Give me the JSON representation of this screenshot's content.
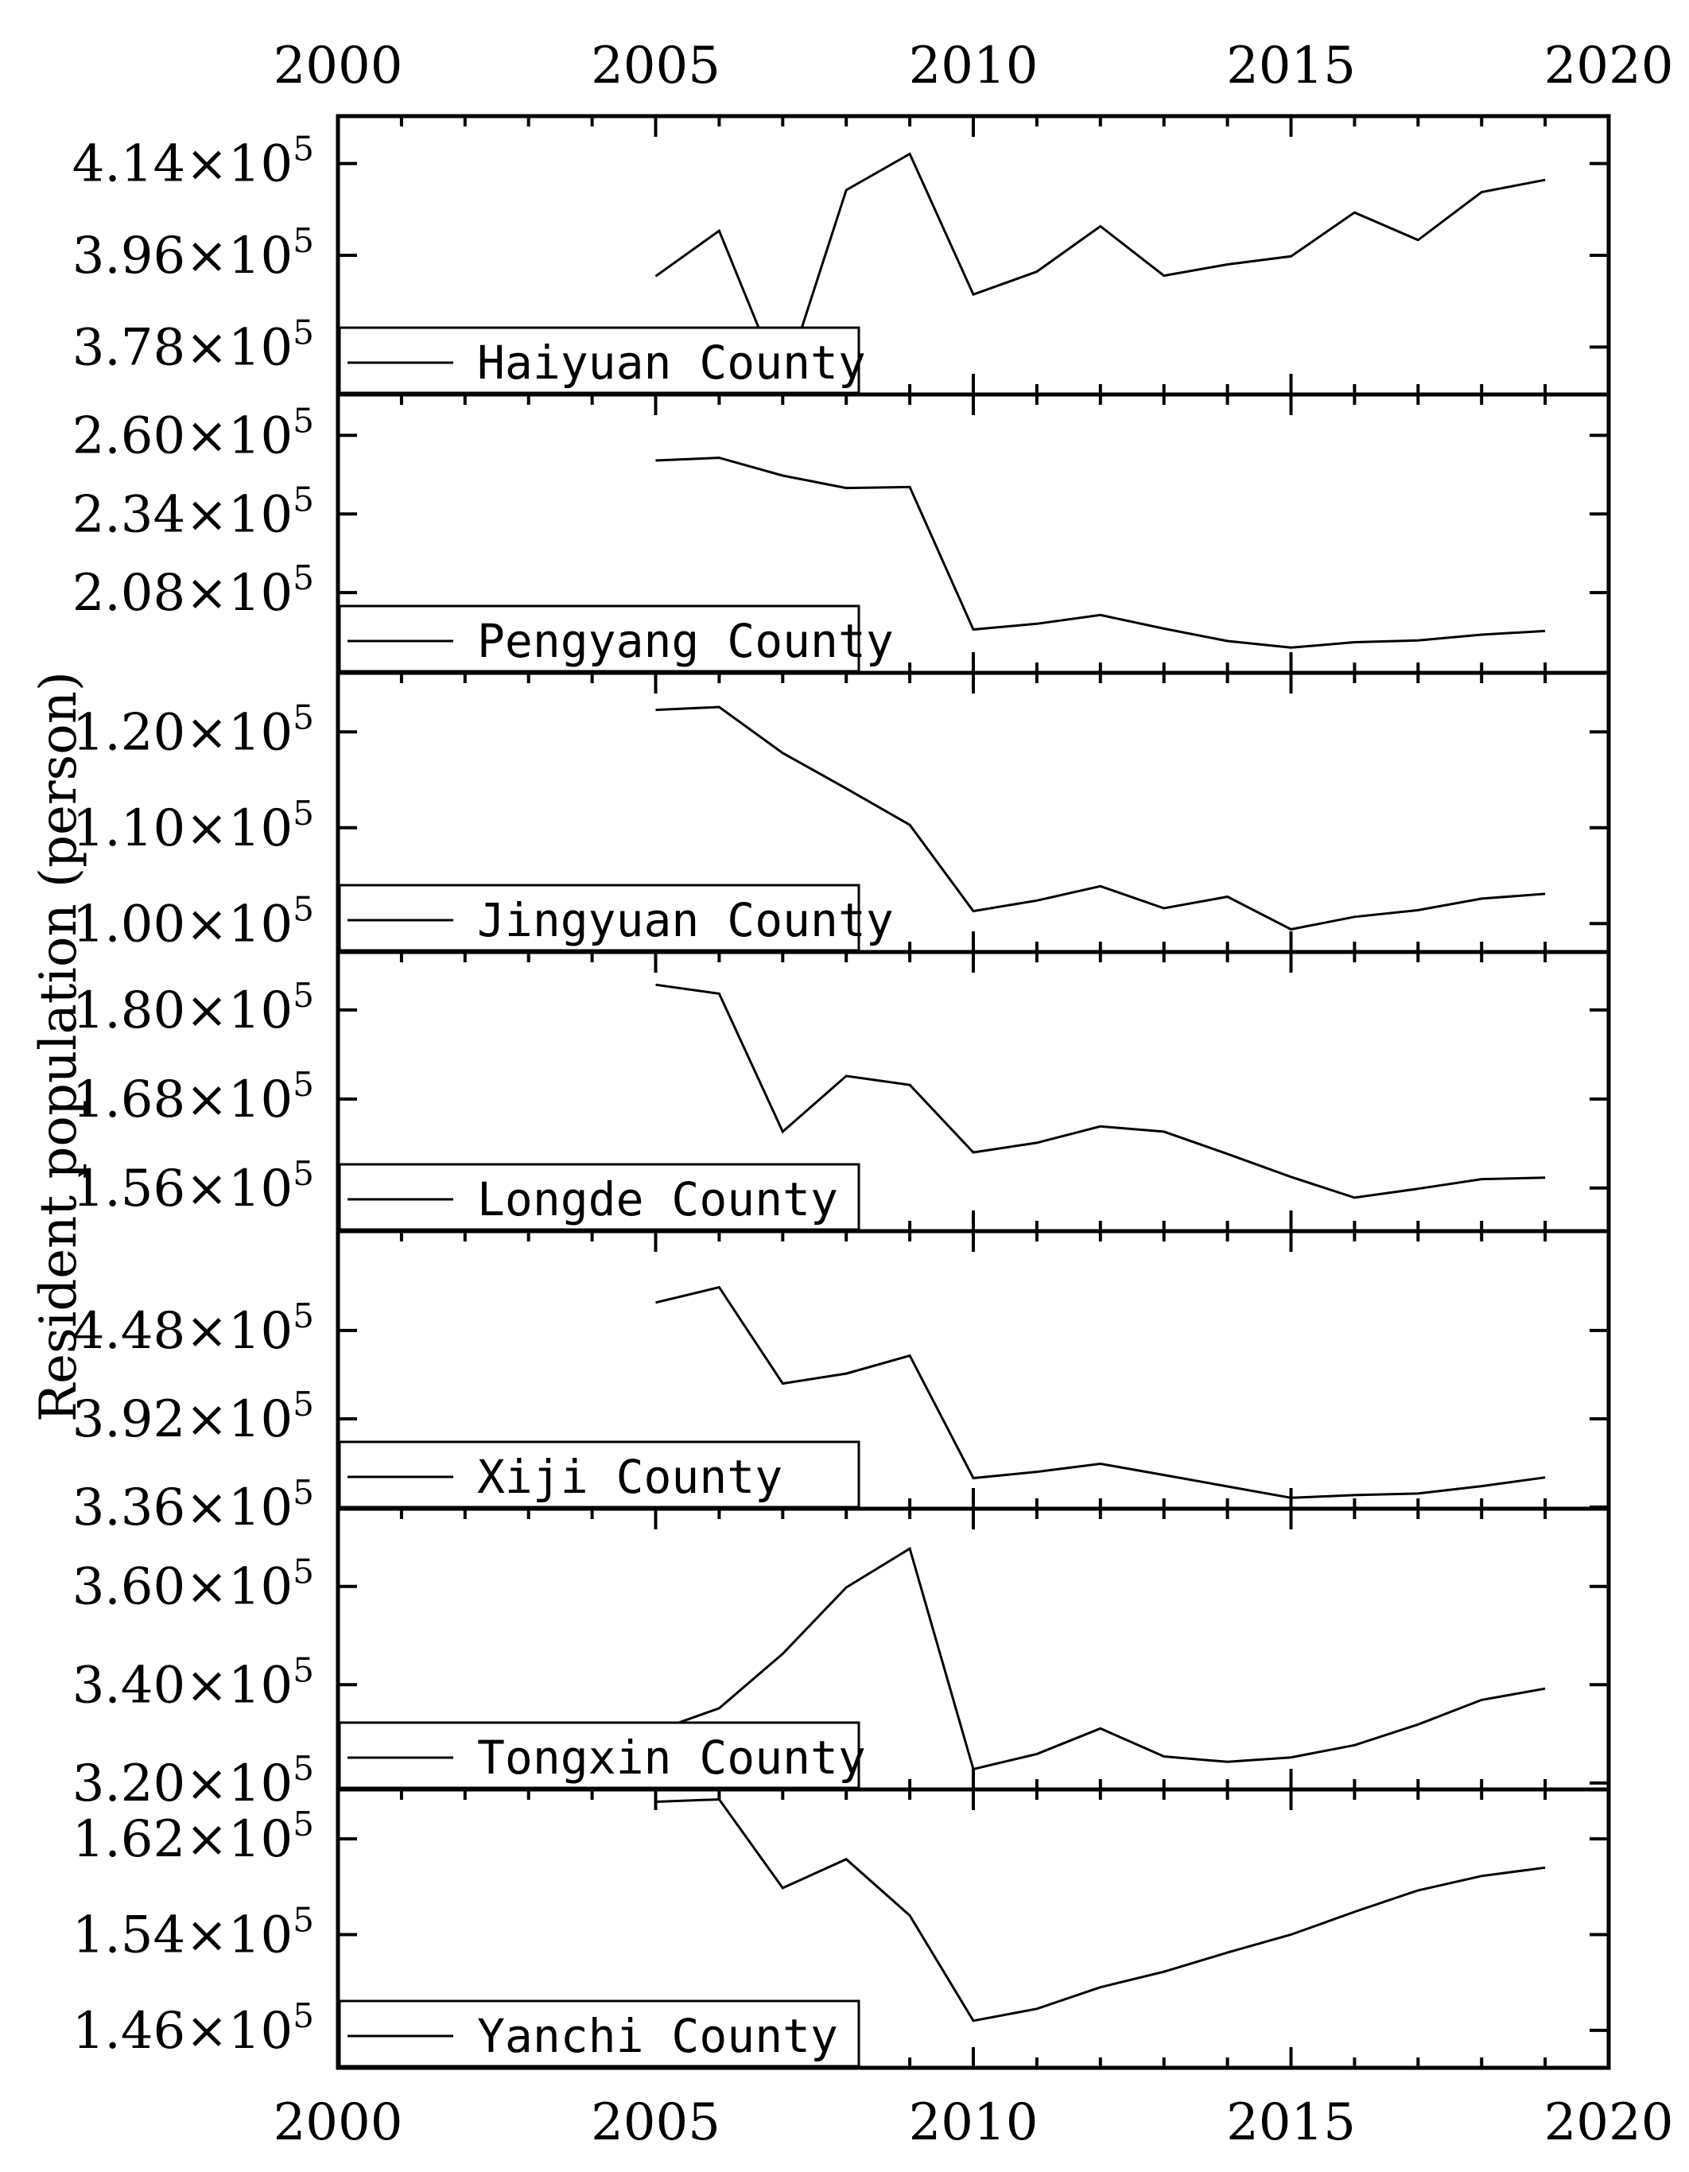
{
  "chart_data": {
    "type": "line",
    "ylabel": "Resident population (person)",
    "xlabel": "",
    "xlim": [
      2000,
      2020
    ],
    "x_ticks": [
      2000,
      2005,
      2010,
      2015,
      2020
    ],
    "x_tick_labels": [
      "2000",
      "2005",
      "2010",
      "2015",
      "2020"
    ],
    "x": [
      2005,
      2006,
      2007,
      2008,
      2009,
      2010,
      2011,
      2012,
      2013,
      2014,
      2015,
      2016,
      2017,
      2018,
      2019
    ],
    "grid": false,
    "legend_placement": "bottom-left",
    "panels": [
      {
        "name": "Haiyuan County",
        "ylim": [
          369000,
          423000
        ],
        "y_ticks": [
          {
            "mantissa": "4.14",
            "value": 414000
          },
          {
            "mantissa": "3.96",
            "value": 396000
          },
          {
            "mantissa": "3.78",
            "value": 378000
          }
        ],
        "values": [
          391900,
          400800,
          370200,
          408800,
          415900,
          388300,
          392800,
          401700,
          392000,
          394200,
          395800,
          404400,
          399000,
          408400,
          410800
        ]
      },
      {
        "name": "Pengyang County",
        "ylim": [
          182000,
          273000
        ],
        "y_ticks": [
          {
            "mantissa": "2.60",
            "value": 260000
          },
          {
            "mantissa": "2.34",
            "value": 234000
          },
          {
            "mantissa": "2.08",
            "value": 208000
          }
        ],
        "values": [
          251700,
          252600,
          246700,
          242600,
          242900,
          195800,
          197700,
          200600,
          196100,
          192000,
          189800,
          191600,
          192200,
          194100,
          195300
        ]
      },
      {
        "name": "Jingyuan County",
        "ylim": [
          97200,
          126000
        ],
        "y_ticks": [
          {
            "mantissa": "1.20",
            "value": 120000
          },
          {
            "mantissa": "1.10",
            "value": 110000
          },
          {
            "mantissa": "1.00",
            "value": 100000
          }
        ],
        "values": [
          122300,
          122600,
          117800,
          114100,
          110300,
          101300,
          102400,
          103900,
          101600,
          102800,
          99400,
          100700,
          101400,
          102600,
          103100
        ]
      },
      {
        "name": "Longde County",
        "ylim": [
          150400,
          187600
        ],
        "y_ticks": [
          {
            "mantissa": "1.80",
            "value": 180000
          },
          {
            "mantissa": "1.56",
            "value": 156000
          },
          {
            "mantissa": "1.68",
            "value": 168000
          }
        ],
        "values": [
          183400,
          182200,
          163600,
          171100,
          169900,
          160800,
          162100,
          164300,
          163600,
          160600,
          157500,
          154700,
          155900,
          157200,
          157400
        ]
      },
      {
        "name": "Xiji County",
        "ylim": [
          336000,
          510000
        ],
        "y_ticks": [
          {
            "mantissa": "4.48",
            "value": 448000
          },
          {
            "mantissa": "3.92",
            "value": 392000
          },
          {
            "mantissa": "3.36",
            "value": 336000
          }
        ],
        "values": [
          465700,
          475400,
          414400,
          420700,
          432100,
          354400,
          358400,
          363500,
          356400,
          349100,
          341900,
          343600,
          344600,
          349300,
          354800
        ]
      },
      {
        "name": "Tongxin County",
        "ylim": [
          319000,
          375500
        ],
        "y_ticks": [
          {
            "mantissa": "3.60",
            "value": 360000
          },
          {
            "mantissa": "3.40",
            "value": 340000
          },
          {
            "mantissa": "3.20",
            "value": 320000
          }
        ],
        "values": [
          330600,
          335200,
          346300,
          359800,
          367700,
          322800,
          325900,
          331100,
          325400,
          324300,
          325200,
          327700,
          331900,
          336900,
          339200
        ]
      },
      {
        "name": "Yanchi County",
        "ylim": [
          143000,
          166000
        ],
        "y_ticks": [
          {
            "mantissa": "1.62",
            "value": 162000
          },
          {
            "mantissa": "1.54",
            "value": 154000
          },
          {
            "mantissa": "1.46",
            "value": 146000
          }
        ],
        "values": [
          165100,
          165300,
          157900,
          160300,
          155600,
          146800,
          147800,
          149600,
          150900,
          152500,
          154000,
          155900,
          157700,
          158900,
          159600
        ]
      }
    ]
  }
}
